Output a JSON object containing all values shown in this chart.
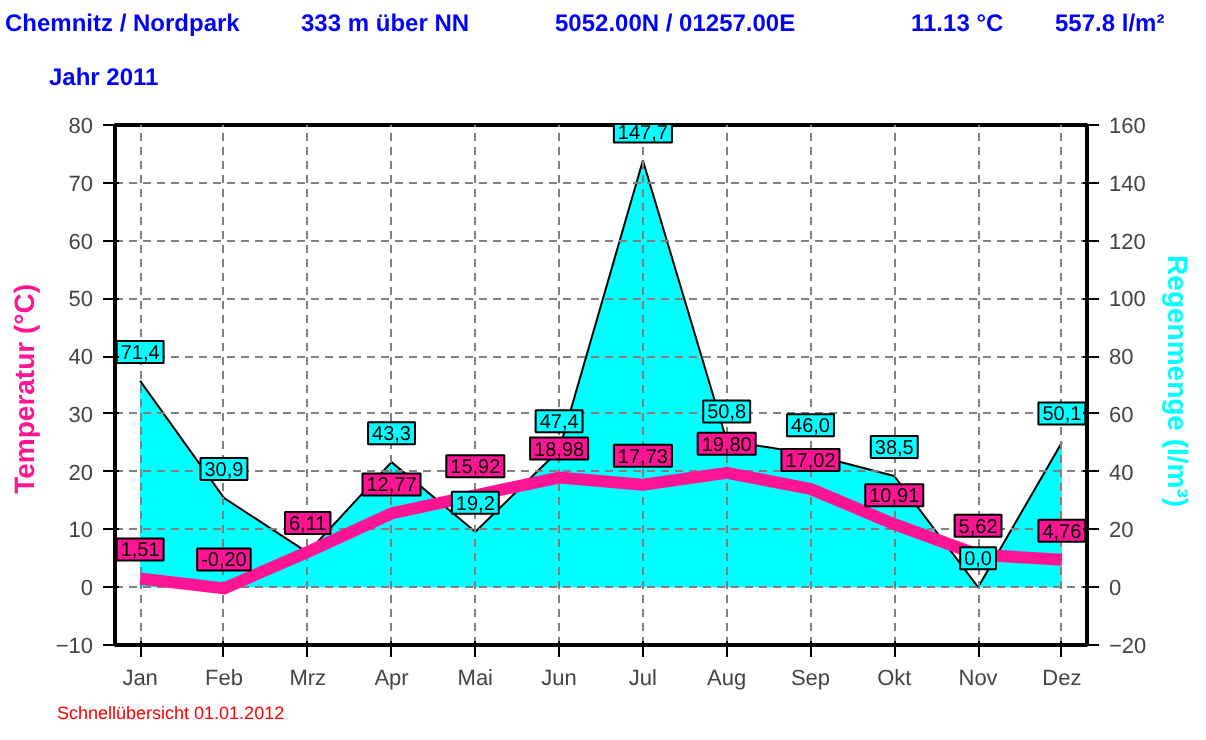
{
  "chart_data": {
    "type": "line",
    "title": "Chemnitz / Nordpark",
    "subtitle": "Jahr  2011",
    "annotations": [
      "333 m über NN",
      "5052.00N / 01257.00E",
      "11.13 °C",
      "557.8 l/m²",
      "Schnellübersicht  01.01.2012"
    ],
    "categories": [
      "Jan",
      "Feb",
      "Mrz",
      "Apr",
      "Mai",
      "Jun",
      "Jul",
      "Aug",
      "Sep",
      "Okt",
      "Nov",
      "Dez"
    ],
    "ylabel": "Temperatur  (°C)",
    "y2label": "Regenmenge  (l/m³)",
    "series": [
      {
        "type": "area",
        "axis": "y2",
        "color": "#00ffff",
        "values": [
          71.4,
          30.9,
          12,
          43.3,
          19.2,
          47.4,
          147.7,
          50.8,
          46.0,
          38.5,
          0.0,
          50.1
        ],
        "value_labels": [
          "71,4",
          "30,9",
          null,
          "43,3",
          "19,2",
          "47,4",
          "147,7",
          "50,8",
          "46,0",
          "38,5",
          "0,0",
          "50,1"
        ]
      },
      {
        "type": "line",
        "color": "#ff1493",
        "values": [
          1.51,
          -0.2,
          6.11,
          12.77,
          15.92,
          18.98,
          17.73,
          19.8,
          17.02,
          10.91,
          5.62,
          4.76
        ],
        "value_labels": [
          "1,51",
          "-0,20",
          "6,11",
          "12,77",
          "15,92",
          "18,98",
          "17,73",
          "19,80",
          "17,02",
          "10,91",
          "5,62",
          "4,76"
        ]
      }
    ],
    "ylim": [
      -10,
      80
    ],
    "yticks": [
      -10,
      0,
      10,
      20,
      30,
      40,
      50,
      60,
      70,
      80
    ],
    "y2lim": [
      -20,
      160
    ],
    "y2ticks": [
      -20,
      0,
      20,
      40,
      60,
      80,
      100,
      120,
      140,
      160
    ],
    "grid": true,
    "line_style": "solid"
  }
}
